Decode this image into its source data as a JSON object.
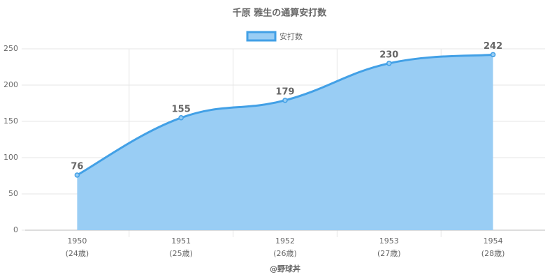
{
  "chart_data": {
    "type": "area",
    "title": "千原 雅生の通算安打数",
    "categories": [
      [
        "1950",
        "(24歳)"
      ],
      [
        "1951",
        "(25歳)"
      ],
      [
        "1952",
        "(26歳)"
      ],
      [
        "1953",
        "(27歳)"
      ],
      [
        "1954",
        "(28歳)"
      ]
    ],
    "series": [
      {
        "name": "安打数",
        "color": "#42a0e6",
        "fill": "#99cdf4",
        "values": [
          76,
          155,
          179,
          230,
          242
        ]
      }
    ],
    "x_label": "@野球丼",
    "ylim": [
      0,
      250
    ],
    "yticks": [
      0,
      50,
      100,
      150,
      200,
      250
    ],
    "grid": true,
    "legend": "top"
  }
}
